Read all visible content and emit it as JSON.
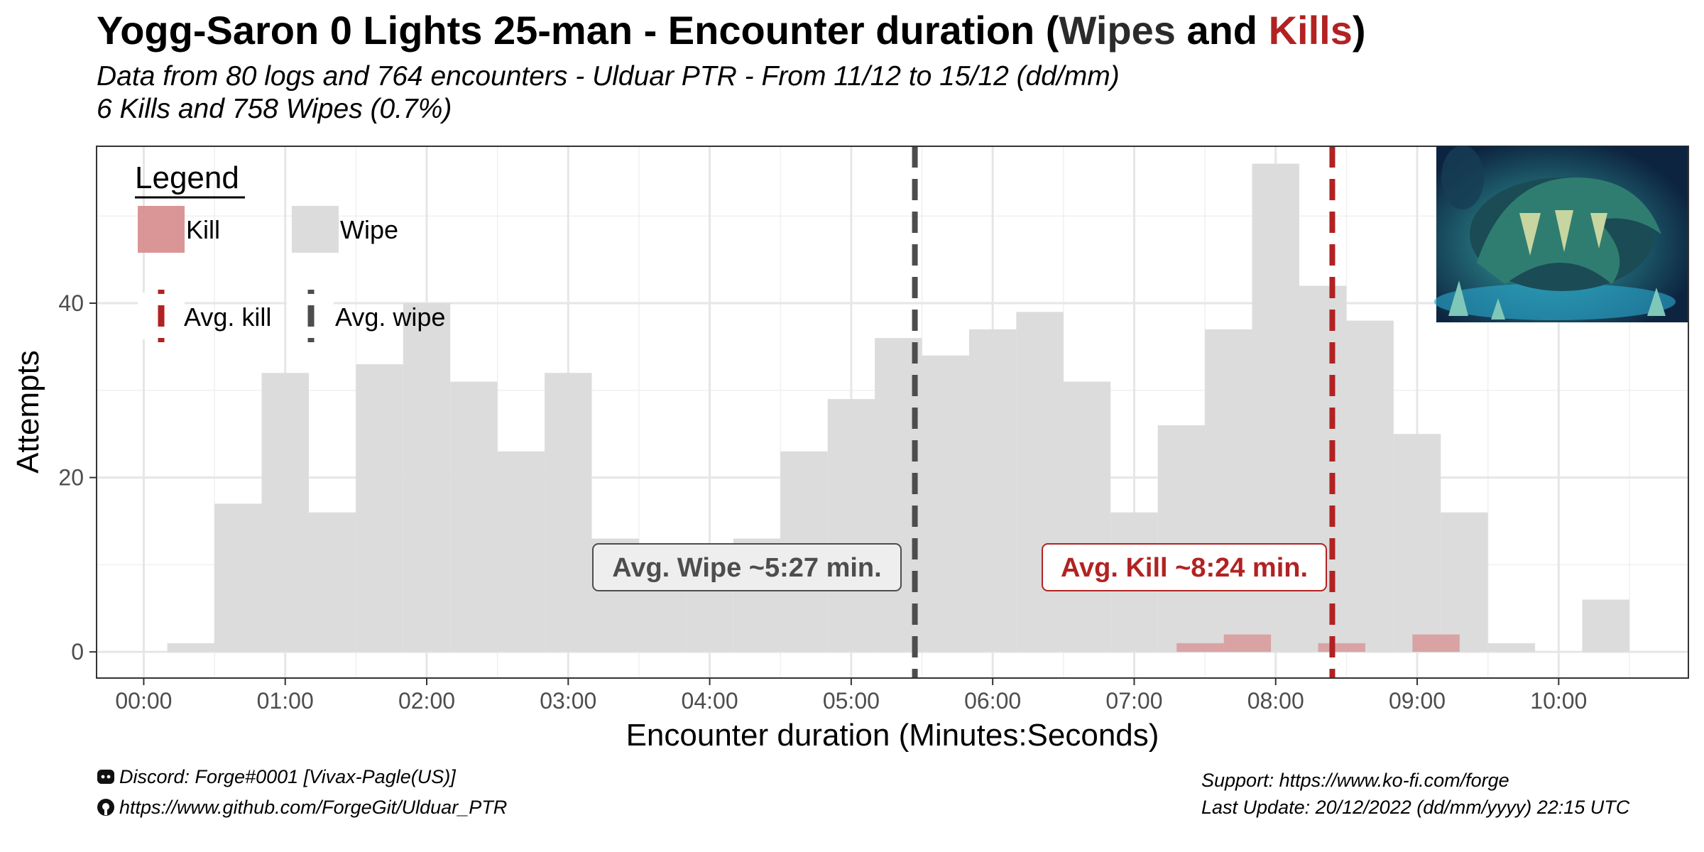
{
  "title": {
    "prefix": "Yogg-Saron 0 Lights 25-man - Encounter duration (",
    "wipes": "Wipes",
    "middle": " and ",
    "kills": "Kills",
    "suffix": ")"
  },
  "subtitle_line1": "Data from 80 logs and 764 encounters - Ulduar PTR - From 11/12 to 15/12 (dd/mm)",
  "subtitle_line2": "6 Kills and 758 Wipes (0.7%)",
  "colors": {
    "wipe": "#dcdcdc",
    "kill": "#d89090",
    "avg_wipe_line": "#4d4d4d",
    "avg_kill_line": "#b22222",
    "kill_text": "#b22222",
    "wipe_text": "#4d4d4d"
  },
  "legend": {
    "title": "Legend",
    "kill": "Kill",
    "wipe": "Wipe",
    "avg_kill": "Avg. kill",
    "avg_wipe": "Avg. wipe"
  },
  "image_description": "Yogg-Saron boss artwork",
  "chart_data": {
    "type": "bar",
    "title": "",
    "xlabel": "Encounter duration (Minutes:Seconds)",
    "ylabel": "Attempts",
    "xlim_seconds": [
      -20,
      655
    ],
    "ylim": [
      -3,
      58
    ],
    "bin_width_seconds": 20,
    "x_ticks": [
      "00:00",
      "01:00",
      "02:00",
      "03:00",
      "04:00",
      "05:00",
      "06:00",
      "07:00",
      "08:00",
      "09:00",
      "10:00"
    ],
    "x_tick_seconds": [
      0,
      60,
      120,
      180,
      240,
      300,
      360,
      420,
      480,
      540,
      600
    ],
    "y_ticks": [
      0,
      20,
      40
    ],
    "grid": true,
    "series": [
      {
        "name": "Wipe",
        "bin_starts_seconds": [
          10,
          30,
          50,
          70,
          90,
          110,
          130,
          150,
          170,
          190,
          210,
          230,
          250,
          270,
          290,
          310,
          330,
          350,
          370,
          390,
          410,
          430,
          450,
          470,
          490,
          510,
          530,
          550,
          570,
          590,
          610
        ],
        "values": [
          1,
          17,
          32,
          16,
          33,
          40,
          31,
          23,
          32,
          13,
          7,
          8,
          13,
          23,
          29,
          36,
          34,
          37,
          39,
          31,
          16,
          26,
          37,
          56,
          42,
          38,
          25,
          16,
          1,
          0,
          6
        ]
      },
      {
        "name": "Kill",
        "bin_starts_seconds": [
          438,
          458,
          498,
          538
        ],
        "values": [
          1,
          2,
          1,
          2
        ]
      }
    ],
    "averages": [
      {
        "name": "Avg. wipe",
        "seconds": 327,
        "label": "Avg. Wipe ~5:27 min."
      },
      {
        "name": "Avg. kill",
        "seconds": 504,
        "label": "Avg. Kill ~8:24 min."
      }
    ],
    "legend_position": "top-left"
  },
  "footer": {
    "discord": "Discord: Forge#0001 [Vivax-Pagle(US)]",
    "github": "https://www.github.com/ForgeGit/Ulduar_PTR",
    "support": "Support: https://www.ko-fi.com/forge",
    "last_update": "Last Update: 20/12/2022 (dd/mm/yyyy) 22:15 UTC"
  }
}
